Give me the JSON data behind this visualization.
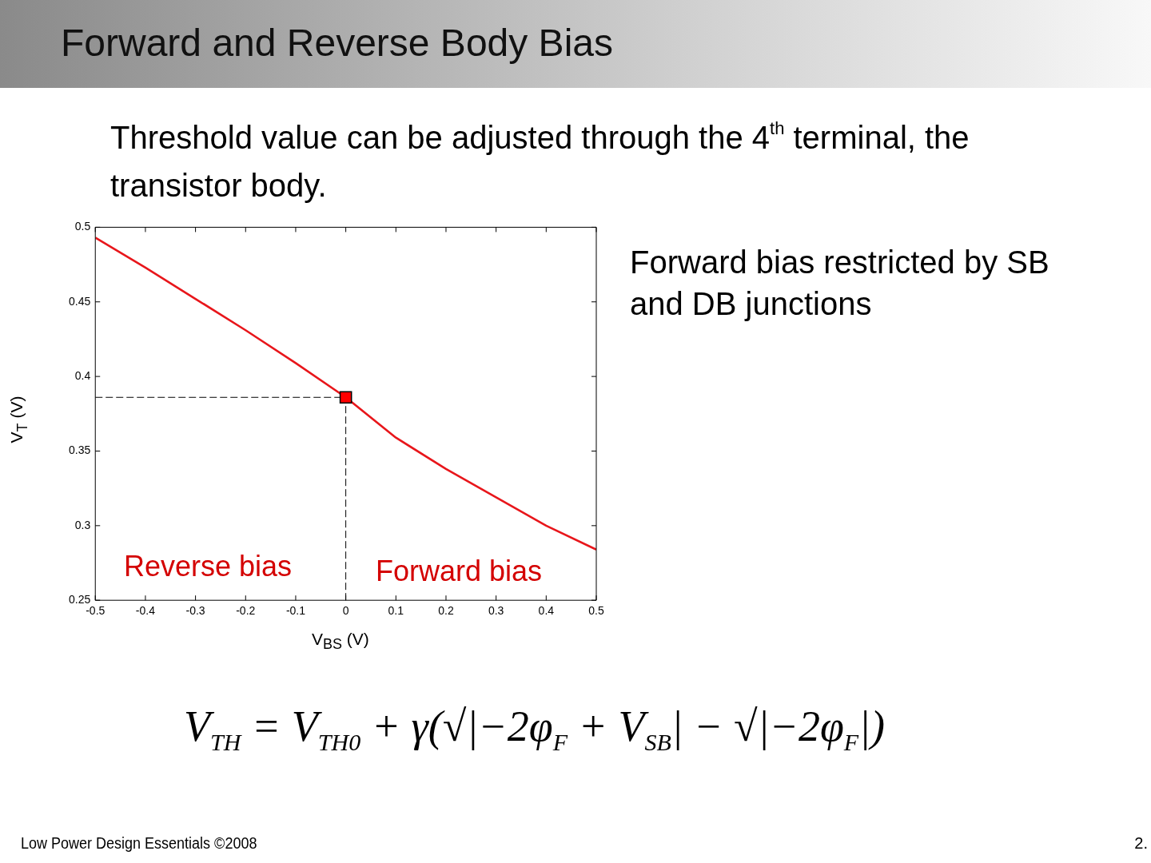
{
  "chart_data": {
    "type": "line",
    "title": "Forward and Reverse Body Bias",
    "subtitle": "Threshold value can be adjusted through the 4$^{th}$ terminal, the transistor body.",
    "xlabel": "V$_{BS}$ (V)",
    "ylabel": "V$_{T}$ (V)",
    "x": [
      -0.5,
      -0.4,
      -0.3,
      -0.2,
      -0.1,
      0,
      0.1,
      0.2,
      0.3,
      0.4,
      0.5
    ],
    "series": [
      {
        "color": "#e8161b",
        "marker": "none",
        "line_style": "solid",
        "values": [
          0.493,
          0.473,
          0.452,
          0.431,
          0.409,
          0.386,
          0.359,
          0.338,
          0.319,
          0.3,
          0.284
        ]
      },
      {
        "type": "scatter",
        "color": "#ff0000",
        "marker": "square",
        "x": [
          0
        ],
        "values": [
          0.386
        ]
      }
    ],
    "xlim": [
      -0.5,
      0.5
    ],
    "xticks": [
      -0.5,
      -0.4,
      -0.3,
      -0.2,
      -0.1,
      0,
      0.1,
      0.2,
      0.3,
      0.4,
      0.5
    ],
    "ylim": [
      0.25,
      0.5
    ],
    "yticks": [
      0.25,
      0.3,
      0.35,
      0.4,
      0.45,
      0.5
    ],
    "ref_lines": [
      {
        "axis": "x",
        "value": 0,
        "color": "#000000",
        "line_style": "dashed"
      },
      {
        "axis": "y",
        "value": 0.386,
        "color": "#000000",
        "line_style": "dashed"
      }
    ],
    "annotations": [
      "Reverse bias",
      "Forward bias",
      "Forward bias restricted by SB and DB junctions",
      "V$_{TH}$ = V$_{TH0}$ + γ(√|−2φ$_{F}$ + V$_{SB}$| − √|−2φ$_{F}$|)",
      "Low Power Design Essentials ©2008",
      "2."
    ],
    "grid": false,
    "legend": false
  }
}
